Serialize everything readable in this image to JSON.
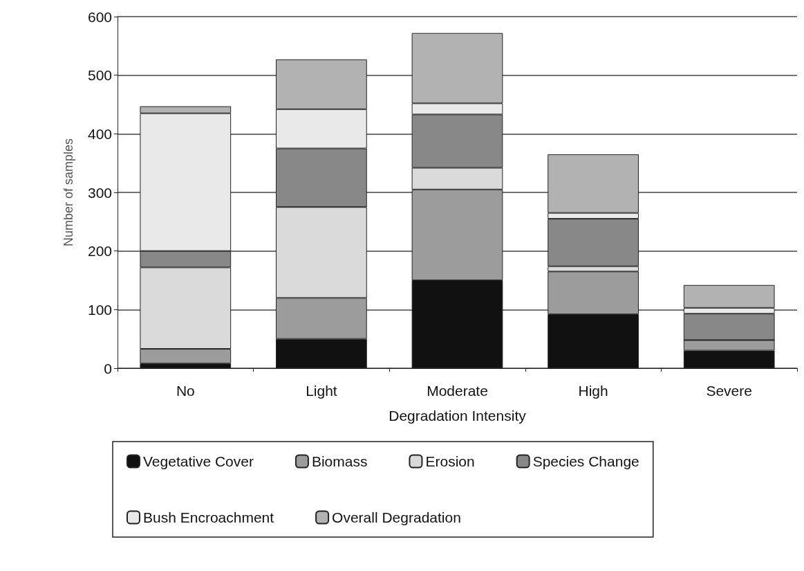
{
  "chart_data": {
    "type": "bar",
    "stacked": true,
    "xlabel": "Degradation Intensity",
    "ylabel": "Number of samples",
    "categories": [
      "No",
      "Light",
      "Moderate",
      "High",
      "Severe"
    ],
    "series": [
      {
        "name": "Vegetative Cover",
        "color": "#111111",
        "values": [
          8,
          50,
          150,
          92,
          30
        ]
      },
      {
        "name": "Biomass",
        "color": "#9c9c9c",
        "values": [
          25,
          70,
          155,
          73,
          18
        ]
      },
      {
        "name": "Erosion",
        "color": "#dadada",
        "values": [
          139,
          155,
          37,
          9,
          0
        ]
      },
      {
        "name": "Species Change",
        "color": "#888888",
        "values": [
          28,
          100,
          91,
          81,
          45
        ]
      },
      {
        "name": "Bush Encroachment",
        "color": "#e9e9e9",
        "values": [
          235,
          67,
          19,
          10,
          10
        ]
      },
      {
        "name": "Overall Degradation",
        "color": "#b2b2b2",
        "values": [
          12,
          85,
          120,
          100,
          39
        ]
      }
    ],
    "ylim": [
      0,
      600
    ],
    "yticks": [
      0,
      100,
      200,
      300,
      400,
      500,
      600
    ],
    "grid": "y",
    "legend": "bottom"
  }
}
